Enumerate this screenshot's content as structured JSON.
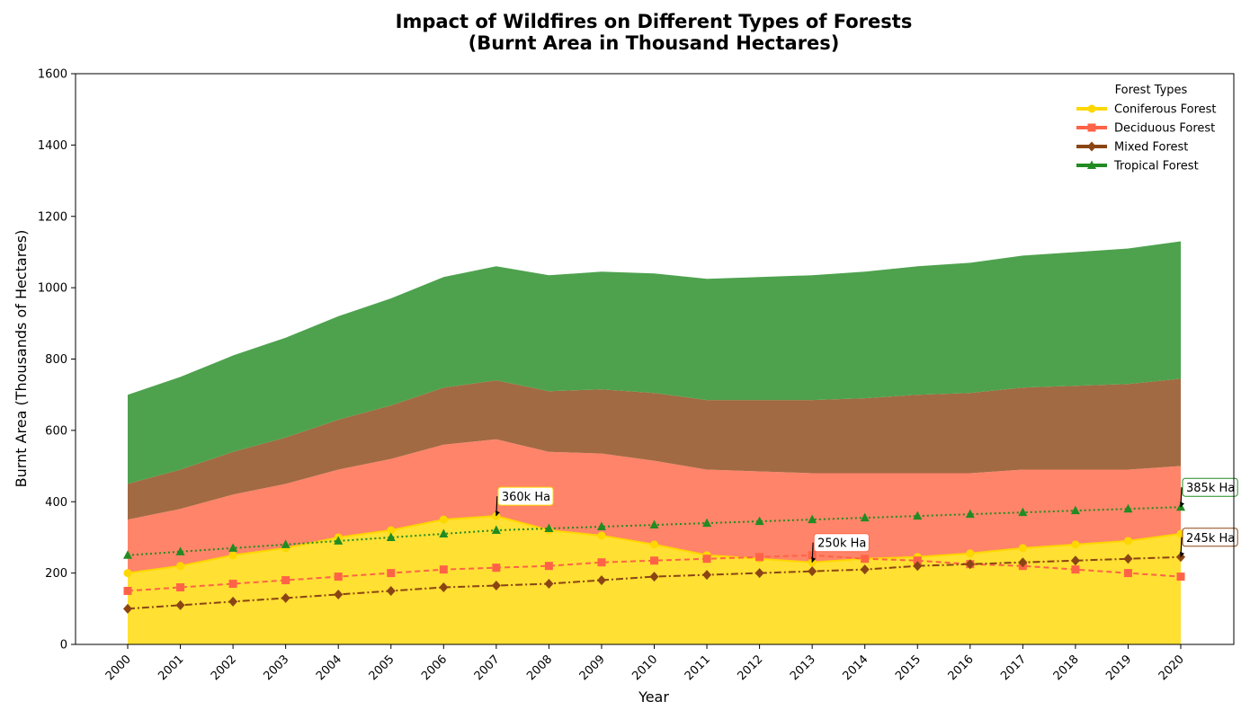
{
  "chart_data": {
    "type": "area",
    "title_line1": "Impact of Wildfires on Different Types of Forests",
    "title_line2": "(Burnt Area in Thousand Hectares)",
    "xlabel": "Year",
    "ylabel": "Burnt Area (Thousands of Hectares)",
    "ylim": [
      0,
      1600
    ],
    "yticks": [
      0,
      200,
      400,
      600,
      800,
      1000,
      1200,
      1400,
      1600
    ],
    "x": [
      "2000",
      "2001",
      "2002",
      "2003",
      "2004",
      "2005",
      "2006",
      "2007",
      "2008",
      "2009",
      "2010",
      "2011",
      "2012",
      "2013",
      "2014",
      "2015",
      "2016",
      "2017",
      "2018",
      "2019",
      "2020"
    ],
    "grid": false,
    "legend": {
      "title": "Forest Types",
      "placement": "top-right"
    },
    "series": [
      {
        "name": "Coniferous Forest",
        "color": "#FFD700",
        "area_color": "#FFE033",
        "line_style": "solid",
        "marker": "circle",
        "values": [
          200,
          220,
          250,
          270,
          300,
          320,
          350,
          360,
          320,
          305,
          280,
          250,
          240,
          230,
          240,
          245,
          255,
          270,
          280,
          290,
          310
        ]
      },
      {
        "name": "Deciduous Forest",
        "color": "#FF6347",
        "area_color": "#FF8469",
        "line_style": "dashed",
        "marker": "square",
        "values": [
          150,
          160,
          170,
          180,
          190,
          200,
          210,
          215,
          220,
          230,
          235,
          240,
          245,
          250,
          240,
          235,
          225,
          220,
          210,
          200,
          190
        ]
      },
      {
        "name": "Mixed Forest",
        "color": "#8B4513",
        "area_color": "#A26A42",
        "line_style": "dashdot",
        "marker": "diamond",
        "values": [
          100,
          110,
          120,
          130,
          140,
          150,
          160,
          165,
          170,
          180,
          190,
          195,
          200,
          205,
          210,
          220,
          225,
          230,
          235,
          240,
          245
        ]
      },
      {
        "name": "Tropical Forest",
        "color": "#228B22",
        "area_color": "#4EA24E",
        "line_style": "dotted",
        "marker": "triangle",
        "values": [
          250,
          260,
          270,
          280,
          290,
          300,
          310,
          320,
          325,
          330,
          335,
          340,
          345,
          350,
          355,
          360,
          365,
          370,
          375,
          380,
          385
        ]
      }
    ],
    "annotations": [
      {
        "text": "360k Ha",
        "x": "2007",
        "y": 360,
        "border": "#FFD700"
      },
      {
        "text": "250k Ha",
        "x": "2013",
        "y": 230,
        "border": "#FF6347"
      },
      {
        "text": "245k Ha",
        "x": "2020",
        "y": 245,
        "border": "#8B4513"
      },
      {
        "text": "385k Ha",
        "x": "2020",
        "y": 385,
        "border": "#228B22"
      }
    ]
  }
}
